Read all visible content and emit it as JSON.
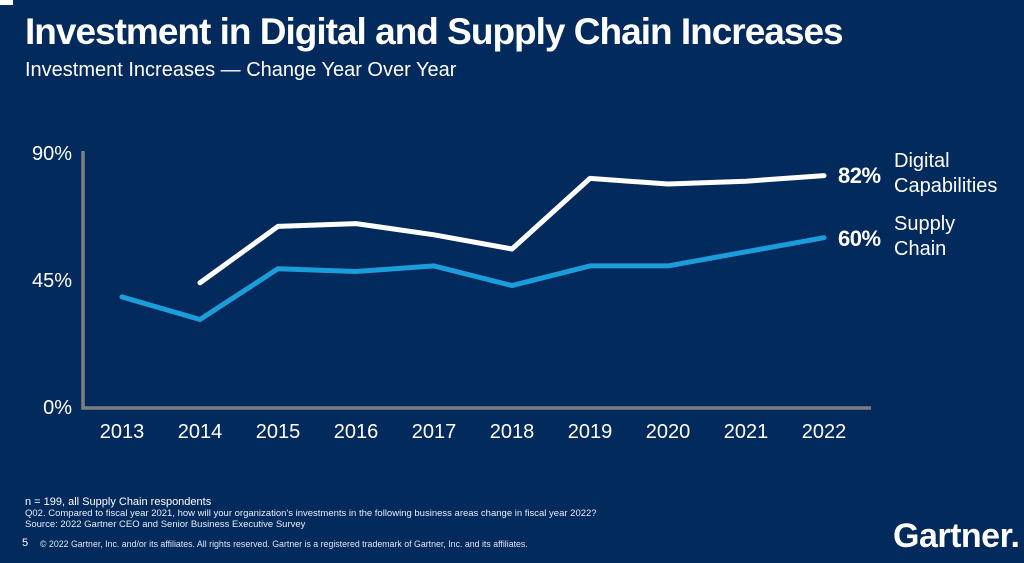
{
  "slide": {
    "title": "Investment in Digital and Supply Chain Increases",
    "subtitle": "Investment Increases — Change Year Over Year",
    "page_number": "5",
    "copyright": "© 2022 Gartner, Inc. and/or its affiliates. All rights reserved. Gartner is a registered trademark of Gartner, Inc. and its affiliates.",
    "logo_text": "Gartner."
  },
  "footnotes": {
    "n_line": "n = 199, all Supply Chain respondents",
    "question": "Q02. Compared to fiscal year 2021, how will your organization's investments in the following business areas change in fiscal year 2022?",
    "source": "Source: 2022 Gartner CEO and Senior Business Executive Survey"
  },
  "colors": {
    "background": "#032A5C",
    "digital_line": "#FFFFFF",
    "supply_line": "#1A9DD9",
    "axis": "#7F7F7F"
  },
  "chart_data": {
    "type": "line",
    "title": "Investment Increases — Change Year Over Year",
    "categories": [
      "2013",
      "2014",
      "2015",
      "2016",
      "2017",
      "2018",
      "2019",
      "2020",
      "2021",
      "2022"
    ],
    "series": [
      {
        "name": "Digital Capabilities",
        "color": "#FFFFFF",
        "values": [
          null,
          44,
          64,
          65,
          61,
          56,
          81,
          79,
          80,
          82
        ],
        "end_label": "82%"
      },
      {
        "name": "Supply Chain",
        "color": "#1A9DD9",
        "values": [
          39,
          31,
          49,
          48,
          50,
          43,
          50,
          50,
          55,
          60
        ],
        "end_label": "60%"
      }
    ],
    "xlabel": "",
    "ylabel": "",
    "ylim": [
      0,
      90
    ],
    "yticks": [
      {
        "value": 90,
        "label": "90%"
      },
      {
        "value": 45,
        "label": "45%"
      },
      {
        "value": 0,
        "label": "0%"
      }
    ],
    "grid": false,
    "legend_position": "right"
  }
}
